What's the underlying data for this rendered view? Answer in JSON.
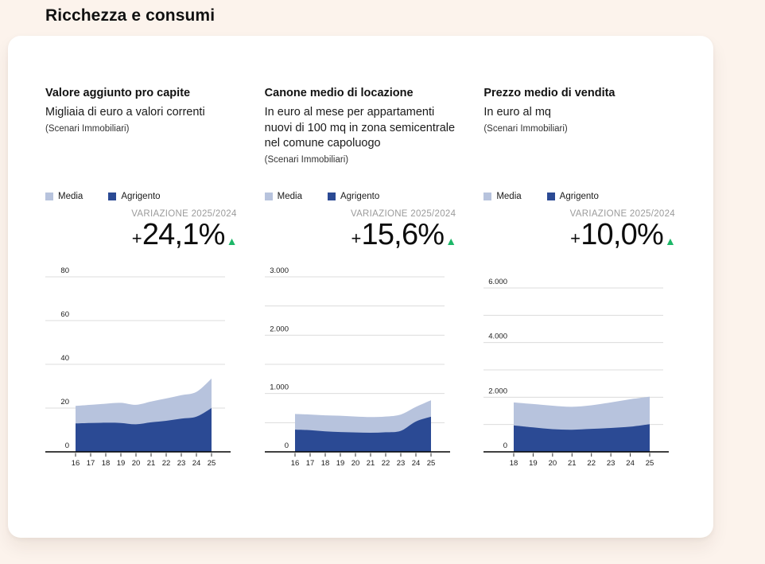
{
  "page": {
    "title": "Ricchezza e consumi"
  },
  "colors": {
    "background": "#fcf3ec",
    "card": "#ffffff",
    "media_area": "#b7c3dd",
    "agrigento_area": "#2b4a94",
    "positive_green": "#1db768",
    "muted_label": "#9b9b9b",
    "gridline": "#dcdcdc",
    "axis": "#000000"
  },
  "icons": {
    "trend-up": "▲"
  },
  "panels": [
    {
      "title": "Valore aggiunto pro capite",
      "subtitle": "Migliaia di euro a valori correnti",
      "source": "(Scenari Immobiliari)",
      "variation": {
        "label": "VARIAZIONE 2025/2024",
        "sign": "+",
        "value": "24,1%",
        "trend": "up"
      }
    },
    {
      "title": "Canone medio di locazione",
      "subtitle": "In euro al mese per appartamenti nuovi di 100 mq in zona semicentrale nel comune capoluogo",
      "source": "(Scenari Immobiliari)",
      "variation": {
        "label": "VARIAZIONE 2025/2024",
        "sign": "+",
        "value": "15,6%",
        "trend": "up"
      }
    },
    {
      "title": "Prezzo medio di vendita",
      "subtitle": "In euro al mq",
      "source": "(Scenari Immobiliari)",
      "variation": {
        "label": "VARIAZIONE 2025/2024",
        "sign": "+",
        "value": "10,0%",
        "trend": "up"
      }
    }
  ],
  "chart_data": [
    {
      "type": "area",
      "title": "Valore aggiunto pro capite",
      "x_labels": [
        "16",
        "17",
        "18",
        "19",
        "20",
        "21",
        "22",
        "23",
        "24",
        "25"
      ],
      "series": [
        {
          "name": "Media",
          "color_key": "media_area",
          "values": [
            21.0,
            21.5,
            22.0,
            22.4,
            21.5,
            23.0,
            24.4,
            25.9,
            27.4,
            33.5
          ]
        },
        {
          "name": "Agrigento",
          "color_key": "agrigento_area",
          "values": [
            13.0,
            13.2,
            13.3,
            13.2,
            12.6,
            13.5,
            14.2,
            15.2,
            16.1,
            20.0
          ]
        }
      ],
      "ylim": [
        0,
        80
      ],
      "grid_interval": 20,
      "y_ticks": [
        {
          "v": 0,
          "label": "0"
        },
        {
          "v": 20,
          "label": "20"
        },
        {
          "v": 40,
          "label": "40"
        },
        {
          "v": 60,
          "label": "60"
        },
        {
          "v": 80,
          "label": "80"
        }
      ],
      "legend_position": "top",
      "grid": true
    },
    {
      "type": "area",
      "title": "Canone medio di locazione",
      "x_labels": [
        "16",
        "17",
        "18",
        "19",
        "20",
        "21",
        "22",
        "23",
        "24",
        "25"
      ],
      "series": [
        {
          "name": "Media",
          "color_key": "media_area",
          "values": [
            650,
            640,
            625,
            618,
            605,
            596,
            605,
            640,
            770,
            885
          ]
        },
        {
          "name": "Agrigento",
          "color_key": "agrigento_area",
          "values": [
            380,
            372,
            352,
            340,
            333,
            327,
            335,
            360,
            520,
            601
          ]
        }
      ],
      "ylim": [
        0,
        3000
      ],
      "grid_interval": 500,
      "y_ticks": [
        {
          "v": 0,
          "label": "0"
        },
        {
          "v": 1000,
          "label": "1.000"
        },
        {
          "v": 2000,
          "label": "2.000"
        },
        {
          "v": 3000,
          "label": "3.000"
        }
      ],
      "legend_position": "top",
      "grid": true
    },
    {
      "type": "area",
      "title": "Prezzo medio di vendita",
      "x_labels": [
        "18",
        "19",
        "20",
        "21",
        "22",
        "23",
        "24",
        "25"
      ],
      "series": [
        {
          "name": "Media",
          "color_key": "media_area",
          "values": [
            1810,
            1750,
            1690,
            1650,
            1705,
            1810,
            1925,
            2020
          ]
        },
        {
          "name": "Agrigento",
          "color_key": "agrigento_area",
          "values": [
            970,
            895,
            830,
            810,
            840,
            875,
            920,
            1012
          ]
        }
      ],
      "ylim": [
        0,
        6000
      ],
      "grid_interval": 1000,
      "y_ticks": [
        {
          "v": 0,
          "label": "0"
        },
        {
          "v": 2000,
          "label": "2.000"
        },
        {
          "v": 4000,
          "label": "4.000"
        },
        {
          "v": 6000,
          "label": "6.000"
        }
      ],
      "legend_position": "top",
      "grid": true
    }
  ]
}
